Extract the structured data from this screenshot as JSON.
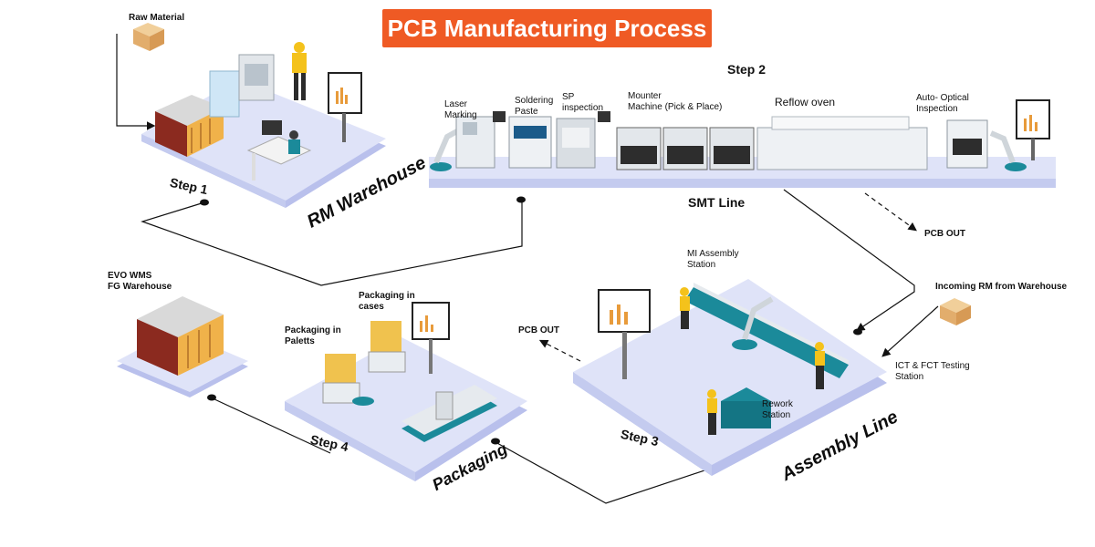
{
  "title": "PCB Manufacturing Process",
  "colors": {
    "title_bg": "#ef5a24",
    "platform": "#d7dcf5",
    "platform_edge": "#b9c0ec",
    "accent_teal": "#1b8a9a",
    "worker_yellow": "#f4c21b",
    "box": "#e8b77a"
  },
  "labels": {
    "raw_material": "Raw Material",
    "step1": "Step 1",
    "rm_warehouse": "RM Warehouse",
    "step2": "Step 2",
    "laser_marking": "Laser\nMarking",
    "soldering_paste": "Soldering\nPaste",
    "sp_inspection": "SP\ninspection",
    "mounter": "Mounter\nMachine (Pick & Place)",
    "reflow": "Reflow oven",
    "aoi": "Auto- Optical\nInspection",
    "smt_line": "SMT Line",
    "pcb_out_1": "PCB OUT",
    "incoming_rm": "Incoming RM from Warehouse",
    "mi_assembly": "MI Assembly\nStation",
    "ict_fct": "ICT & FCT Testing\nStation",
    "rework": "Rework\nStation",
    "step3": "Step 3",
    "assembly_line": "Assembly Line",
    "pcb_out_2": "PCB OUT",
    "evo_wms": "EVO WMS\nFG Warehouse",
    "pack_cases": "Packaging in\ncases",
    "pack_paletts": "Packaging in\nPaletts",
    "step4": "Step 4",
    "packaging": "Packaging"
  }
}
